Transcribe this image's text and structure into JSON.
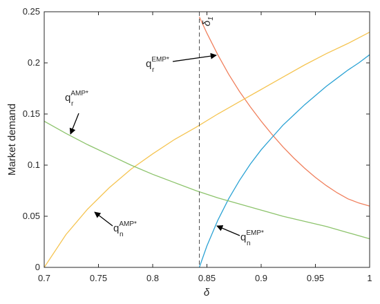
{
  "chart_data": {
    "type": "line",
    "xlabel": "δ",
    "ylabel": "Market demand",
    "xlim": [
      0.7,
      1.0
    ],
    "ylim": [
      0,
      0.25
    ],
    "xticks": [
      "0.7",
      "0.75",
      "0.8",
      "0.85",
      "0.9",
      "0.95",
      "1"
    ],
    "yticks": [
      "0",
      "0.05",
      "0.1",
      "0.15",
      "0.2",
      "0.25"
    ],
    "grid": false,
    "series": [
      {
        "name": "q_r^EMP*",
        "color": "#f07f5c",
        "x": [
          0.843,
          0.85,
          0.86,
          0.87,
          0.88,
          0.89,
          0.9,
          0.91,
          0.92,
          0.93,
          0.94,
          0.95,
          0.96,
          0.97,
          0.98,
          0.99,
          1.0
        ],
        "y": [
          0.245,
          0.229,
          0.208,
          0.189,
          0.172,
          0.157,
          0.143,
          0.13,
          0.118,
          0.107,
          0.097,
          0.088,
          0.08,
          0.073,
          0.067,
          0.063,
          0.06
        ]
      },
      {
        "name": "q_n^EMP*",
        "color": "#2aa2d4",
        "x": [
          0.843,
          0.85,
          0.86,
          0.87,
          0.88,
          0.89,
          0.9,
          0.91,
          0.92,
          0.93,
          0.94,
          0.95,
          0.96,
          0.97,
          0.98,
          0.99,
          1.0
        ],
        "y": [
          0.0,
          0.021,
          0.046,
          0.067,
          0.085,
          0.101,
          0.115,
          0.127,
          0.139,
          0.149,
          0.159,
          0.168,
          0.177,
          0.185,
          0.193,
          0.2,
          0.208
        ]
      },
      {
        "name": "q_n^AMP*",
        "color": "#f5c451",
        "x": [
          0.7,
          0.72,
          0.74,
          0.76,
          0.78,
          0.8,
          0.82,
          0.84,
          0.86,
          0.88,
          0.9,
          0.92,
          0.94,
          0.96,
          0.98,
          1.0
        ],
        "y": [
          0.0,
          0.032,
          0.057,
          0.078,
          0.096,
          0.111,
          0.125,
          0.137,
          0.15,
          0.162,
          0.174,
          0.186,
          0.198,
          0.209,
          0.219,
          0.23
        ]
      },
      {
        "name": "q_r^AMP*",
        "color": "#8cc36b",
        "x": [
          0.7,
          0.72,
          0.74,
          0.76,
          0.78,
          0.8,
          0.82,
          0.84,
          0.86,
          0.88,
          0.9,
          0.92,
          0.94,
          0.96,
          0.98,
          1.0
        ],
        "y": [
          0.143,
          0.131,
          0.12,
          0.11,
          0.1,
          0.091,
          0.083,
          0.075,
          0.068,
          0.062,
          0.056,
          0.05,
          0.045,
          0.04,
          0.034,
          0.028
        ]
      }
    ],
    "vline": {
      "x": 0.843,
      "label": "δ",
      "label_sub": "1"
    },
    "annotations": [
      {
        "base": "q",
        "sub": "r",
        "sup": "EMP*"
      },
      {
        "base": "q",
        "sub": "n",
        "sup": "EMP*"
      },
      {
        "base": "q",
        "sub": "n",
        "sup": "AMP*"
      },
      {
        "base": "q",
        "sub": "r",
        "sup": "AMP*"
      }
    ]
  }
}
